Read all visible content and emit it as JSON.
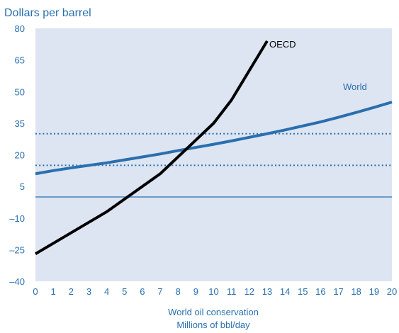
{
  "chart_data": {
    "type": "line",
    "ylabel": "Dollars per barrel",
    "xlabel": [
      "World oil conservation",
      "Millions of bbl/day"
    ],
    "xlim": [
      0,
      20
    ],
    "ylim": [
      -40,
      80
    ],
    "x_ticks": [
      "0",
      "1",
      "2",
      "3",
      "4",
      "5",
      "6",
      "7",
      "8",
      "9",
      "10",
      "11",
      "12",
      "13",
      "14",
      "15",
      "16",
      "17",
      "18",
      "19",
      "20"
    ],
    "y_ticks": [
      "80",
      "65",
      "50",
      "35",
      "20",
      "5",
      "–10",
      "–25",
      "–40"
    ],
    "y_tick_values": [
      80,
      65,
      50,
      35,
      20,
      5,
      -10,
      -25,
      -40
    ],
    "grid": false,
    "background": "#dde5f2",
    "reference_lines": [
      {
        "y": 0,
        "style": "solid",
        "color": "#2a6fae"
      },
      {
        "y": 15,
        "style": "dotted",
        "color": "#2a6fae"
      },
      {
        "y": 30,
        "style": "dotted",
        "color": "#2a6fae"
      }
    ],
    "series": [
      {
        "name": "OECD",
        "color": "#000000",
        "x": [
          0,
          1,
          2,
          3,
          4,
          5,
          6,
          7,
          8,
          9,
          10,
          11,
          12,
          13
        ],
        "y": [
          -27,
          -22,
          -17,
          -12,
          -7,
          -1,
          5,
          11,
          19,
          27,
          35,
          46,
          60,
          74
        ]
      },
      {
        "name": "World",
        "color": "#2a6fae",
        "x": [
          0,
          1,
          2,
          3,
          4,
          5,
          6,
          7,
          8,
          9,
          10,
          11,
          12,
          13,
          14,
          15,
          16,
          17,
          18,
          19,
          20
        ],
        "y": [
          11,
          12.5,
          13.8,
          15,
          16.2,
          17.6,
          19,
          20.4,
          22,
          23.5,
          25,
          26.6,
          28.3,
          30,
          31.8,
          33.7,
          35.6,
          37.8,
          40.1,
          42.5,
          45
        ]
      }
    ]
  }
}
